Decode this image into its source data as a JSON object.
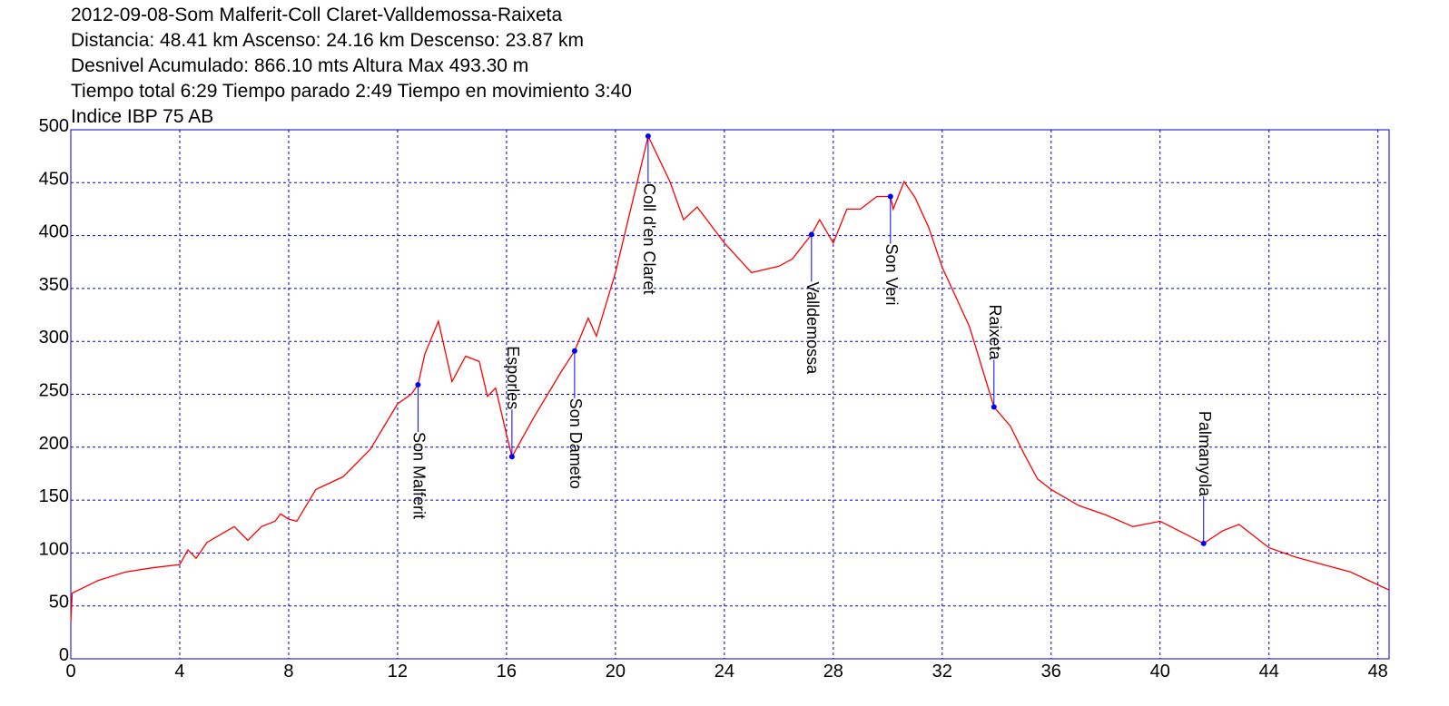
{
  "chart_data": {
    "type": "line",
    "title_lines": [
      "2012-09-08-Som Malferit-Coll Claret-Valldemossa-Raixeta",
      "Distancia: 48.41 km Ascenso: 24.16 km Descenso: 23.87 km",
      "Desnivel Acumulado: 866.10 mts  Altura Max 493.30 m",
      "Tiempo total 6:29 Tiempo parado 2:49 Tiempo en movimiento 3:40",
      "Indice IBP 75 AB"
    ],
    "x": [
      0,
      0.05,
      1,
      2,
      3,
      4,
      4.3,
      4.6,
      5,
      6,
      6.5,
      7,
      7.5,
      7.7,
      8,
      8.3,
      9,
      10,
      11,
      12,
      12.5,
      12.75,
      13,
      13.5,
      14,
      14.5,
      15,
      15.3,
      15.6,
      16,
      16.2,
      17,
      18,
      18.5,
      19,
      19.3,
      20,
      20.4,
      21,
      21.2,
      22,
      22.5,
      23,
      24,
      25,
      26,
      26.5,
      27.2,
      27.5,
      28,
      28.5,
      29,
      29.6,
      30.1,
      30.2,
      30.6,
      31,
      31.5,
      32,
      33,
      33.9,
      34.5,
      35,
      35.5,
      36,
      37,
      38,
      39,
      40,
      41,
      41.6,
      42.3,
      42.9,
      44,
      45,
      46,
      47,
      48.41
    ],
    "series": [
      {
        "color": "#ff0000",
        "values": [
          35,
          62,
          74,
          82,
          86,
          89,
          103,
          95,
          110,
          125,
          112,
          125,
          130,
          137,
          132,
          130,
          160,
          172,
          198,
          241,
          250,
          259,
          288,
          319,
          262,
          286,
          281,
          248,
          256,
          212,
          191,
          228,
          271,
          291,
          322,
          305,
          365,
          408,
          472,
          494,
          451,
          415,
          427,
          393,
          365,
          371,
          378,
          401,
          415,
          393,
          425,
          425,
          437,
          437,
          425,
          451,
          436,
          408,
          370,
          314,
          238,
          220,
          194,
          170,
          160,
          145,
          136,
          125,
          130,
          117,
          109,
          121,
          127,
          105,
          96,
          89,
          82,
          65
        ]
      }
    ],
    "waypoints": [
      {
        "name": "Son Malferit",
        "x": 12.75,
        "y": 259
      },
      {
        "name": "Esporles",
        "x": 16.2,
        "y": 191
      },
      {
        "name": "Son Dameto",
        "x": 18.5,
        "y": 291
      },
      {
        "name": "Coll d'en Claret",
        "x": 21.2,
        "y": 494
      },
      {
        "name": "Valldemossa",
        "x": 27.2,
        "y": 401
      },
      {
        "name": "Son Veri",
        "x": 30.1,
        "y": 437
      },
      {
        "name": "Raixeta",
        "x": 33.9,
        "y": 238
      },
      {
        "name": "Palmanyola",
        "x": 41.6,
        "y": 109
      }
    ],
    "xlim": [
      0,
      48.41
    ],
    "ylim": [
      0,
      500
    ],
    "xticks": [
      0,
      4,
      8,
      12,
      16,
      20,
      24,
      28,
      32,
      36,
      40,
      44,
      48
    ],
    "yticks": [
      0,
      50,
      100,
      150,
      200,
      250,
      300,
      350,
      400,
      450,
      500
    ],
    "grid": true,
    "grid_color": "#0000cc",
    "frame_color": "#0000cc",
    "marker_color": "#0000ff"
  }
}
